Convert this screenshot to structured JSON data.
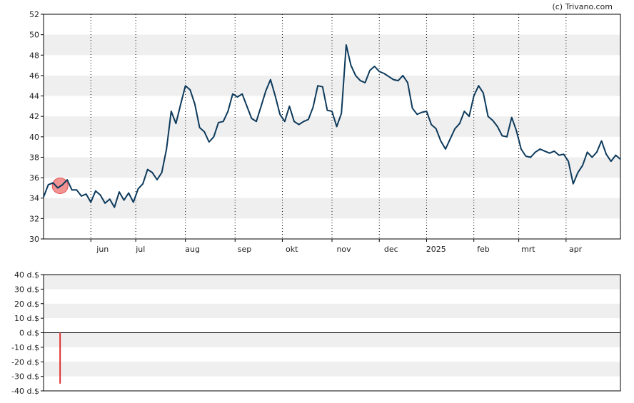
{
  "credit": "(c) Trivano.com",
  "colors": {
    "price_line": "#0d3a5c",
    "band": "#efefef",
    "marker_fill": "#f08080",
    "marker_stroke": "#e05050",
    "volume_bar": "#e03030"
  },
  "chart_data": [
    {
      "type": "line",
      "ylim": [
        30,
        52
      ],
      "y_ticks": [
        "30",
        "32",
        "34",
        "36",
        "38",
        "40",
        "42",
        "44",
        "46",
        "48",
        "50",
        "52"
      ],
      "x_labels": [
        "jun",
        "jul",
        "aug",
        "sep",
        "okt",
        "nov",
        "dec",
        "2025",
        "feb",
        "mrt",
        "apr"
      ],
      "x_label_pos": [
        12.5,
        20.5,
        31.5,
        42.5,
        52.5,
        63.5,
        73.5,
        83,
        93,
        102.5,
        112.5
      ],
      "vgrid_pos": [
        10,
        19.5,
        30,
        40.5,
        50.5,
        61,
        71,
        81,
        91,
        100.5,
        110.5
      ],
      "xlim": [
        0,
        122
      ],
      "x": [
        0,
        1,
        2,
        3,
        4,
        5,
        6,
        7,
        8,
        9,
        10,
        11,
        12,
        13,
        14,
        15,
        16,
        17,
        18,
        19,
        20,
        21,
        22,
        23,
        24,
        25,
        26,
        27,
        28,
        29,
        30,
        31,
        32,
        33,
        34,
        35,
        36,
        37,
        38,
        39,
        40,
        41,
        42,
        43,
        44,
        45,
        46,
        47,
        48,
        49,
        50,
        51,
        52,
        53,
        54,
        55,
        56,
        57,
        58,
        59,
        60,
        61,
        62,
        63,
        64,
        65,
        66,
        67,
        68,
        69,
        70,
        71,
        72,
        73,
        74,
        75,
        76,
        77,
        78,
        79,
        80,
        81,
        82,
        83,
        84,
        85,
        86,
        87,
        88,
        89,
        90,
        91,
        92,
        93,
        94,
        95,
        96,
        97,
        98,
        99,
        100,
        101,
        102,
        103,
        104,
        105,
        106,
        107,
        108,
        109,
        110,
        111,
        112,
        113,
        114,
        115,
        116,
        117,
        118,
        119,
        120,
        121,
        122
      ],
      "values": [
        34.1,
        35.3,
        35.5,
        35.0,
        35.3,
        35.8,
        34.8,
        34.8,
        34.2,
        34.4,
        33.6,
        34.7,
        34.3,
        33.5,
        33.9,
        33.1,
        34.6,
        33.8,
        34.5,
        33.6,
        34.9,
        35.4,
        36.8,
        36.5,
        35.8,
        36.5,
        38.8,
        42.5,
        41.3,
        43.2,
        45.0,
        44.6,
        43.2,
        40.9,
        40.5,
        39.5,
        40.0,
        41.4,
        41.5,
        42.5,
        44.2,
        43.9,
        44.2,
        43.0,
        41.8,
        41.5,
        43.0,
        44.5,
        45.6,
        44.0,
        42.2,
        41.5,
        43.0,
        41.5,
        41.2,
        41.5,
        41.7,
        42.9,
        45.0,
        44.9,
        42.6,
        42.5,
        41.0,
        42.3,
        49.0,
        47.0,
        46.0,
        45.5,
        45.3,
        46.5,
        46.9,
        46.4,
        46.2,
        45.9,
        45.6,
        45.5,
        46.0,
        45.3,
        42.8,
        42.2,
        42.4,
        42.5,
        41.2,
        40.8,
        39.6,
        38.8,
        39.8,
        40.8,
        41.3,
        42.5,
        42.0,
        44.0,
        45.0,
        44.3,
        42.0,
        41.6,
        41.0,
        40.1,
        40.0,
        41.9,
        40.6,
        38.8,
        38.1,
        38.0,
        38.5,
        38.8,
        38.6,
        38.4,
        38.6,
        38.2,
        38.3,
        37.6,
        35.4,
        36.5,
        37.2,
        38.5,
        38.0,
        38.5,
        39.6,
        38.3,
        37.6,
        38.2,
        37.8
      ],
      "marker": {
        "x": 3.5,
        "y": 35.2
      }
    },
    {
      "type": "bar",
      "ylim": [
        -40,
        40
      ],
      "y_ticks": [
        "-40 d.$",
        "-30 d.$",
        "-20 d.$",
        "-10 d.$",
        "0 d.$",
        "10 d.$",
        "20 d.$",
        "30 d.$",
        "40 d.$"
      ],
      "bars": [
        {
          "x": 3.5,
          "value": -35
        }
      ]
    }
  ]
}
